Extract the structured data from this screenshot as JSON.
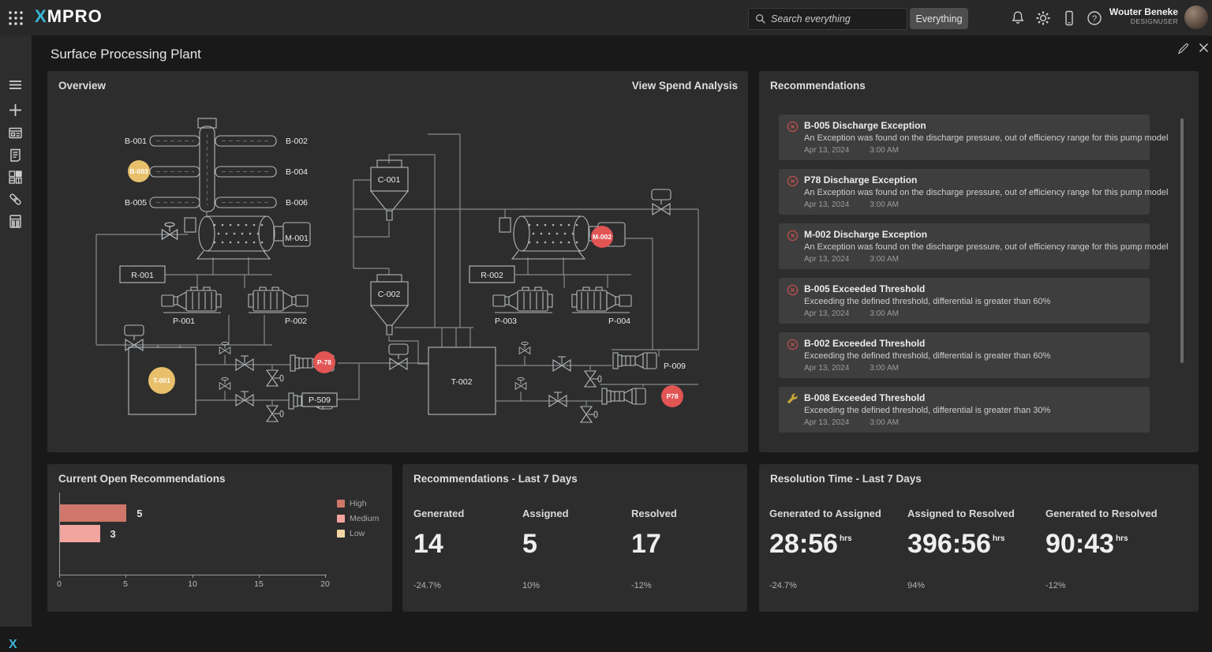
{
  "topbar": {
    "logo_x": "X",
    "logo_rest": "MPRO",
    "search": {
      "placeholder": "Search everything",
      "scope_button": "Everything"
    },
    "user": {
      "name": "Wouter Beneke",
      "role": "DESIGNUSER"
    }
  },
  "page": {
    "title": "Surface Processing Plant"
  },
  "overview": {
    "title": "Overview",
    "link": "View Spend Analysis",
    "diagram": {
      "labels": {
        "b001": "B-001",
        "b002": "B-002",
        "b003": "B-003",
        "b004": "B-004",
        "b005": "B-005",
        "b006": "B-006",
        "m001": "M-001",
        "m002": "M-002",
        "r001": "R-001",
        "r002": "R-002",
        "c001": "C-001",
        "c002": "C-002",
        "p001": "P-001",
        "p002": "P-002",
        "p003": "P-003",
        "p004": "P-004",
        "t001": "T-001",
        "t002": "T-002",
        "p78": "P-78",
        "p509": "P-509",
        "p009": "P-009",
        "p78b": "P78"
      },
      "colors": {
        "warning": "#e8c06c",
        "alert": "#e25555"
      }
    }
  },
  "recommendations": {
    "title": "Recommendations",
    "items": [
      {
        "icon": "error",
        "title": "B-005 Discharge Exception",
        "desc": "An Exception was found on the discharge pressure, out of efficiency range for this pump model",
        "date": "Apr 13, 2024",
        "time": "3:00 AM"
      },
      {
        "icon": "error",
        "title": "P78 Discharge Exception",
        "desc": "An Exception was found on the discharge pressure, out of efficiency range for this pump model",
        "date": "Apr 13, 2024",
        "time": "3:00 AM"
      },
      {
        "icon": "error",
        "title": "M-002 Discharge Exception",
        "desc": "An Exception was found on the discharge pressure, out of efficiency range for this pump model",
        "date": "Apr 13, 2024",
        "time": "3:00 AM"
      },
      {
        "icon": "error",
        "title": "B-005 Exceeded Threshold",
        "desc": "Exceeding the defined threshold, differential is greater than 60%",
        "date": "Apr 13, 2024",
        "time": "3:00 AM"
      },
      {
        "icon": "error",
        "title": "B-002 Exceeded Threshold",
        "desc": "Exceeding the defined threshold, differential is greater than 60%",
        "date": "Apr 13, 2024",
        "time": "3:00 AM"
      },
      {
        "icon": "wrench",
        "title": "B-008 Exceeded Threshold",
        "desc": "Exceeding the defined threshold, differential is greater than 30%",
        "date": "Apr 13, 2024",
        "time": "3:00 AM"
      }
    ]
  },
  "chart_data": {
    "type": "bar",
    "orientation": "horizontal",
    "title": "Current Open Recommendations",
    "categories": [
      "High",
      "Medium"
    ],
    "values": [
      5,
      3
    ],
    "bar_colors": [
      "#d0766a",
      "#f2a49e"
    ],
    "legend": [
      {
        "label": "High",
        "color": "#d0766a"
      },
      {
        "label": "Medium",
        "color": "#f2a49e"
      },
      {
        "label": "Low",
        "color": "#f3d6a4"
      }
    ],
    "xlim": [
      0,
      20
    ],
    "xticks": [
      0,
      5,
      10,
      15,
      20
    ],
    "grid": false,
    "legend_position": "right"
  },
  "last7": {
    "title": "Recommendations - Last 7 Days",
    "stats": [
      {
        "label": "Generated",
        "value": "14",
        "delta": "-24.7%"
      },
      {
        "label": "Assigned",
        "value": "5",
        "delta": "10%"
      },
      {
        "label": "Resolved",
        "value": "17",
        "delta": "-12%"
      }
    ]
  },
  "resolution": {
    "title": "Resolution Time - Last 7 Days",
    "stats": [
      {
        "label": "Generated to Assigned",
        "value": "28:56",
        "unit": "hrs",
        "delta": "-24.7%"
      },
      {
        "label": "Assigned to Resolved",
        "value": "396:56",
        "unit": "hrs",
        "delta": "94%"
      },
      {
        "label": "Generated to Resolved",
        "value": "90:43",
        "unit": "hrs",
        "delta": "-12%"
      }
    ]
  }
}
